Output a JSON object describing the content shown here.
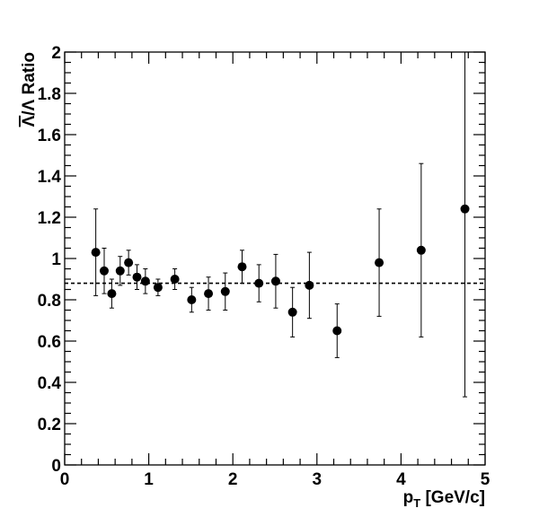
{
  "chart_data": {
    "type": "scatter",
    "xlabel": "p",
    "xlabel_subscript": "T",
    "xlabel_unit": " [GeV/c]",
    "ylabel_bar_symbol": "Λ",
    "ylabel_rest": "/Λ Ratio",
    "xlim": [
      0,
      5
    ],
    "ylim": [
      0,
      2
    ],
    "x_ticks": [
      {
        "value": 0,
        "label": "0"
      },
      {
        "value": 1,
        "label": "1"
      },
      {
        "value": 2,
        "label": "2"
      },
      {
        "value": 3,
        "label": "3"
      },
      {
        "value": 4,
        "label": "4"
      },
      {
        "value": 5,
        "label": "5"
      }
    ],
    "y_ticks": [
      {
        "value": 0,
        "label": "0"
      },
      {
        "value": 0.2,
        "label": "0.2"
      },
      {
        "value": 0.4,
        "label": "0.4"
      },
      {
        "value": 0.6,
        "label": "0.6"
      },
      {
        "value": 0.8,
        "label": "0.8"
      },
      {
        "value": 1.0,
        "label": "1"
      },
      {
        "value": 1.2,
        "label": "1.2"
      },
      {
        "value": 1.4,
        "label": "1.4"
      },
      {
        "value": 1.6,
        "label": "1.6"
      },
      {
        "value": 1.8,
        "label": "1.8"
      },
      {
        "value": 2.0,
        "label": "2"
      }
    ],
    "grid": false,
    "reference_line": {
      "y": 0.88,
      "style": "dashed"
    },
    "series": [
      {
        "marker": "filled-circle",
        "color": "#000000",
        "points": [
          {
            "x": 0.37,
            "y": 1.03,
            "err": 0.21
          },
          {
            "x": 0.47,
            "y": 0.94,
            "err": 0.11
          },
          {
            "x": 0.56,
            "y": 0.83,
            "err": 0.07
          },
          {
            "x": 0.66,
            "y": 0.94,
            "err": 0.07
          },
          {
            "x": 0.76,
            "y": 0.98,
            "err": 0.06
          },
          {
            "x": 0.86,
            "y": 0.91,
            "err": 0.06
          },
          {
            "x": 0.96,
            "y": 0.89,
            "err": 0.06
          },
          {
            "x": 1.11,
            "y": 0.86,
            "err": 0.04
          },
          {
            "x": 1.31,
            "y": 0.9,
            "err": 0.05
          },
          {
            "x": 1.51,
            "y": 0.8,
            "err": 0.06
          },
          {
            "x": 1.71,
            "y": 0.83,
            "err": 0.08
          },
          {
            "x": 1.91,
            "y": 0.84,
            "err": 0.09
          },
          {
            "x": 2.11,
            "y": 0.96,
            "err": 0.08
          },
          {
            "x": 2.31,
            "y": 0.88,
            "err": 0.09
          },
          {
            "x": 2.51,
            "y": 0.89,
            "err": 0.13
          },
          {
            "x": 2.71,
            "y": 0.74,
            "err": 0.12
          },
          {
            "x": 2.91,
            "y": 0.87,
            "err": 0.16
          },
          {
            "x": 3.24,
            "y": 0.65,
            "err": 0.13
          },
          {
            "x": 3.74,
            "y": 0.98,
            "err": 0.26
          },
          {
            "x": 4.24,
            "y": 1.04,
            "err": 0.42
          },
          {
            "x": 4.76,
            "y": 1.24,
            "err": 0.91
          }
        ]
      }
    ]
  }
}
